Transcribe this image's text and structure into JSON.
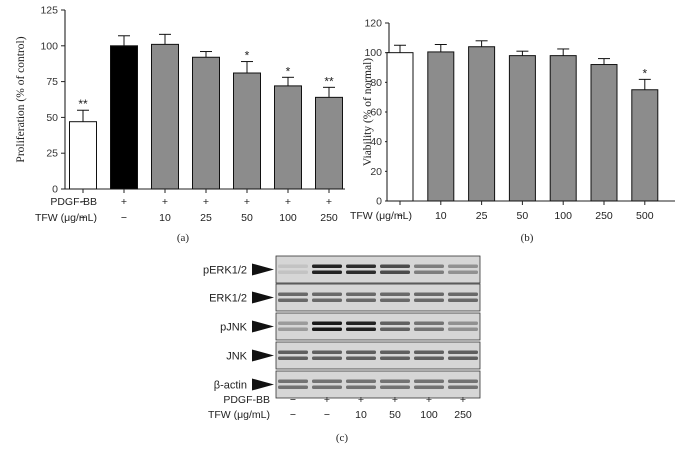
{
  "chart_data": [
    {
      "type": "bar",
      "panel_label": "(a)",
      "ylabel": "Proliferation (% of control)",
      "ylim": [
        0,
        125
      ],
      "yticks": [
        0,
        25,
        50,
        75,
        100,
        125
      ],
      "values": [
        47,
        100,
        101,
        92,
        81,
        72,
        64
      ],
      "errors": [
        8,
        7,
        7,
        4,
        8,
        6,
        7
      ],
      "significance": [
        "**",
        "",
        "",
        "",
        "*",
        "*",
        "**"
      ],
      "bar_fills": [
        "white",
        "black",
        "gray",
        "gray",
        "gray",
        "gray",
        "gray"
      ],
      "row_labels": [
        "PDGF-BB",
        "TFW (μg/mL)"
      ],
      "rows": [
        [
          "−",
          "+",
          "+",
          "+",
          "+",
          "+",
          "+"
        ],
        [
          "−",
          "−",
          "10",
          "25",
          "50",
          "100",
          "250"
        ]
      ],
      "colors": {
        "white": "#ffffff",
        "black": "#000000",
        "gray": "#8c8c8c"
      }
    },
    {
      "type": "bar",
      "panel_label": "(b)",
      "ylabel": "Viability (% of normal)",
      "ylim": [
        0,
        120
      ],
      "yticks": [
        0,
        20,
        40,
        60,
        80,
        100,
        120
      ],
      "values": [
        100,
        100.5,
        104,
        98,
        98,
        92,
        75
      ],
      "errors": [
        5,
        5,
        4,
        3,
        4.5,
        4,
        7
      ],
      "significance": [
        "",
        "",
        "",
        "",
        "",
        "",
        "*"
      ],
      "bar_fills": [
        "white",
        "gray",
        "gray",
        "gray",
        "gray",
        "gray",
        "gray"
      ],
      "row_labels": [
        "TFW (μg/mL)"
      ],
      "rows": [
        [
          "−",
          "10",
          "25",
          "50",
          "100",
          "250",
          "500"
        ]
      ],
      "colors": {
        "white": "#ffffff",
        "black": "#000000",
        "gray": "#8c8c8c"
      }
    },
    {
      "type": "table",
      "panel_label": "(c)",
      "blot_rows": [
        "pERK1/2",
        "ERK1/2",
        "pJNK",
        "JNK",
        "β-actin"
      ],
      "intensities": [
        [
          0.15,
          0.95,
          0.9,
          0.75,
          0.5,
          0.4
        ],
        [
          0.6,
          0.6,
          0.6,
          0.6,
          0.6,
          0.6
        ],
        [
          0.35,
          1.0,
          0.95,
          0.65,
          0.55,
          0.4
        ],
        [
          0.65,
          0.65,
          0.65,
          0.65,
          0.65,
          0.65
        ],
        [
          0.55,
          0.55,
          0.55,
          0.55,
          0.55,
          0.55
        ]
      ],
      "row_labels": [
        "PDGF-BB",
        "TFW (μg/mL)"
      ],
      "rows": [
        [
          "−",
          "+",
          "+",
          "+",
          "+",
          "+"
        ],
        [
          "−",
          "−",
          "10",
          "50",
          "100",
          "250"
        ]
      ]
    }
  ]
}
